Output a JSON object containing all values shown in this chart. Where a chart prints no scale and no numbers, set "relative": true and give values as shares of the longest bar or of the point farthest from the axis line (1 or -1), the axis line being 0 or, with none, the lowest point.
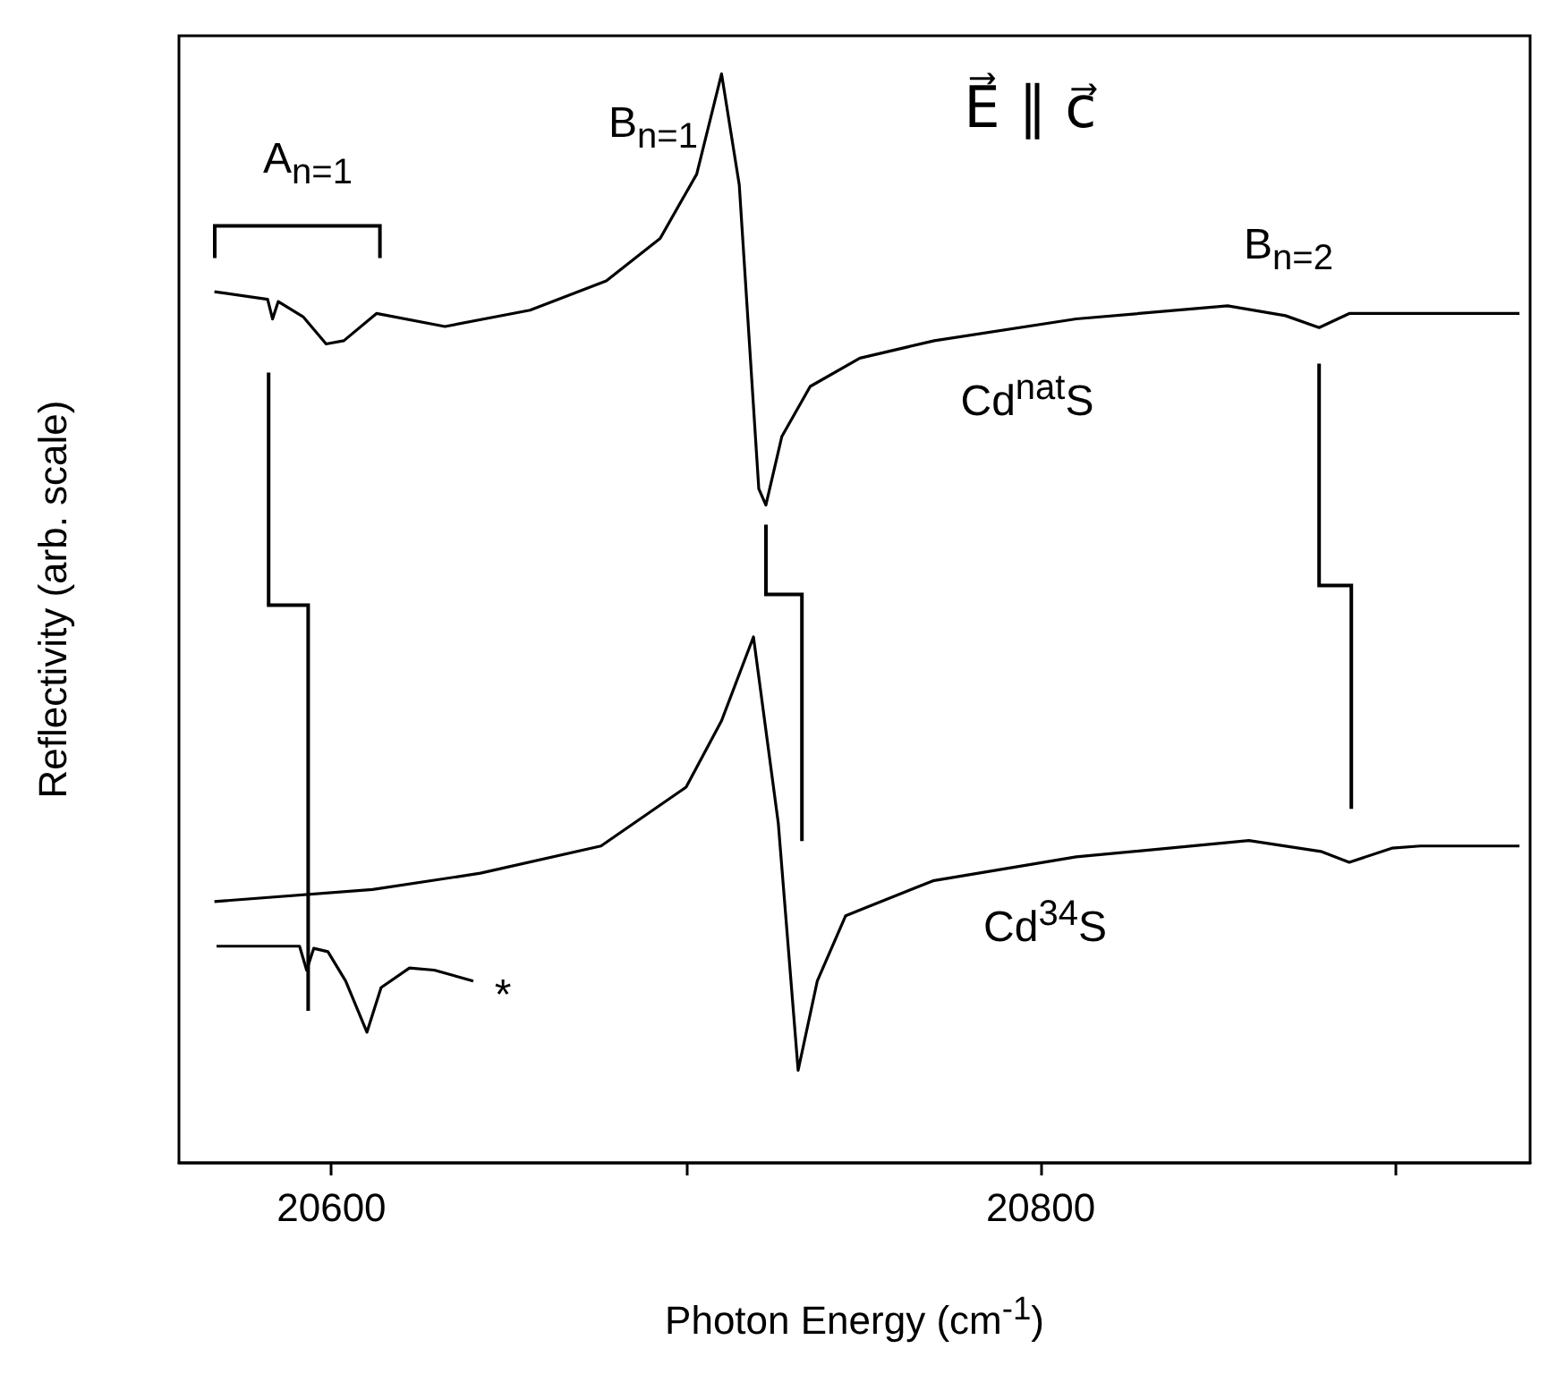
{
  "chart_data": {
    "type": "line",
    "title": "E⃗ ∥ c⃗",
    "xlabel": "Photon Energy (cm$^{-1}$)",
    "ylabel": "Reflectivity (arb. scale)",
    "relative": true,
    "xlim": [
      20557,
      20938
    ],
    "xticks": [
      20600,
      {
        "value": 20700,
        "label": null
      },
      20800,
      {
        "value": 20900,
        "label": null
      }
    ],
    "series": [
      {
        "color": "#000000",
        "x": [
          20567,
          20582,
          20583.4,
          20585,
          20592,
          20598.5,
          20603.5,
          20612.7,
          20632,
          20656,
          20677.5,
          20692.7,
          20703,
          20710,
          20715,
          20720.5,
          20722.5,
          20727,
          20735,
          20749,
          20770,
          20810,
          20852.7,
          20869,
          20878.5,
          20887,
          20907,
          20935
        ],
        "values": [
          0.8,
          0.793,
          0.775,
          0.791,
          0.777,
          0.752,
          0.755,
          0.78,
          0.768,
          0.783,
          0.81,
          0.849,
          0.908,
          1.0,
          0.898,
          0.619,
          0.604,
          0.667,
          0.713,
          0.739,
          0.755,
          0.775,
          0.787,
          0.778,
          0.767,
          0.78,
          0.78,
          0.78
        ]
      },
      {
        "color": "#000000",
        "x": [
          20567,
          20611.6,
          20642,
          20676,
          20700,
          20710,
          20719,
          20726,
          20731.6,
          20737,
          20745,
          20769.6,
          20810,
          20858.7,
          20879,
          20887,
          20899,
          20907,
          20935
        ],
        "values": [
          0.24,
          0.251,
          0.266,
          0.291,
          0.345,
          0.406,
          0.483,
          0.312,
          0.085,
          0.167,
          0.227,
          0.259,
          0.281,
          0.296,
          0.286,
          0.276,
          0.289,
          0.291,
          0.291
        ]
      },
      {
        "color": "#000000",
        "x": [
          20567.6,
          20591,
          20593,
          20595,
          20599,
          20604,
          20610,
          20614,
          20622,
          20629,
          20640
        ],
        "values": [
          0.199,
          0.199,
          0.177,
          0.197,
          0.194,
          0.167,
          0.12,
          0.161,
          0.179,
          0.177,
          0.167
        ]
      }
    ],
    "annotations": [
      "A$_{n=1}$",
      "B$_{n=1}$",
      "B$_{n=2}$",
      "Cd$^{nat}$S",
      "Cd$^{34}$S",
      "*"
    ],
    "grid": false
  }
}
